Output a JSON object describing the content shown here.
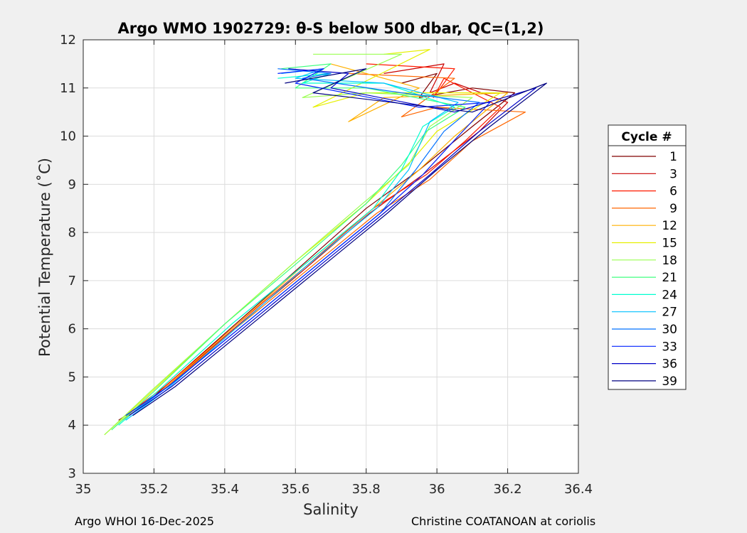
{
  "chart_data": {
    "type": "line",
    "title": "Argo WMO 1902729: θ-S below 500 dbar,  QC=(1,2)",
    "xlabel": "Salinity",
    "ylabel": "Potential Temperature (˚C)",
    "xlim": [
      35,
      36.4
    ],
    "ylim": [
      3,
      12
    ],
    "xticks": [
      "35",
      "35.2",
      "35.4",
      "35.6",
      "35.8",
      "36",
      "36.2",
      "36.4"
    ],
    "yticks": [
      "3",
      "4",
      "5",
      "6",
      "7",
      "8",
      "9",
      "10",
      "11",
      "12"
    ],
    "grid": true,
    "legend": {
      "title": "Cycle #",
      "placement": "outside-right",
      "entries": [
        {
          "label": "1",
          "color": "#800000"
        },
        {
          "label": "3",
          "color": "#c80000"
        },
        {
          "label": "6",
          "color": "#ff1a00"
        },
        {
          "label": "9",
          "color": "#ff6600"
        },
        {
          "label": "12",
          "color": "#ffb000"
        },
        {
          "label": "15",
          "color": "#e6f000"
        },
        {
          "label": "18",
          "color": "#9aff50"
        },
        {
          "label": "21",
          "color": "#40ff80"
        },
        {
          "label": "24",
          "color": "#00ffd0"
        },
        {
          "label": "27",
          "color": "#00c0ff"
        },
        {
          "label": "30",
          "color": "#0070ff"
        },
        {
          "label": "33",
          "color": "#0020ff"
        },
        {
          "label": "36",
          "color": "#0000c8"
        },
        {
          "label": "39",
          "color": "#000080"
        }
      ]
    },
    "series": [
      {
        "name": "1",
        "color": "#800000",
        "x": [
          35.1,
          35.2,
          35.4,
          35.6,
          35.8,
          35.95,
          36.1,
          36.22,
          36.1,
          35.95,
          36.0,
          35.9
        ],
        "y": [
          4.1,
          4.6,
          5.9,
          7.2,
          8.5,
          9.3,
          10.2,
          10.9,
          11.0,
          10.8,
          11.3,
          11.1
        ]
      },
      {
        "name": "3",
        "color": "#c80000",
        "x": [
          35.11,
          35.22,
          35.41,
          35.62,
          35.81,
          35.96,
          36.12,
          36.2,
          36.05,
          35.98,
          36.02,
          35.85
        ],
        "y": [
          4.1,
          4.7,
          5.9,
          7.2,
          8.4,
          9.2,
          10.1,
          10.7,
          11.1,
          10.9,
          11.5,
          11.3
        ]
      },
      {
        "name": "6",
        "color": "#ff1a00",
        "x": [
          35.12,
          35.23,
          35.42,
          35.63,
          35.82,
          35.97,
          36.08,
          36.18,
          36.02,
          35.99,
          36.05,
          35.8
        ],
        "y": [
          4.2,
          4.8,
          6.0,
          7.3,
          8.5,
          9.2,
          9.9,
          10.6,
          11.2,
          10.8,
          11.4,
          11.5
        ]
      },
      {
        "name": "9",
        "color": "#ff6600",
        "x": [
          35.12,
          35.24,
          35.43,
          35.63,
          35.83,
          35.98,
          36.1,
          36.25,
          36.0,
          35.9,
          36.05,
          35.75
        ],
        "y": [
          4.2,
          4.8,
          6.0,
          7.2,
          8.4,
          9.1,
          9.9,
          10.5,
          10.6,
          10.4,
          11.2,
          11.3
        ]
      },
      {
        "name": "12",
        "color": "#ffb000",
        "x": [
          35.11,
          35.22,
          35.42,
          35.62,
          35.82,
          35.95,
          36.05,
          36.2,
          35.85,
          35.75,
          35.95,
          35.7
        ],
        "y": [
          4.1,
          4.7,
          6.0,
          7.3,
          8.5,
          9.3,
          10.0,
          10.9,
          10.8,
          10.3,
          11.0,
          11.5
        ]
      },
      {
        "name": "15",
        "color": "#e6f000",
        "x": [
          35.06,
          35.18,
          35.4,
          35.6,
          35.8,
          35.93,
          36.0,
          36.18,
          35.8,
          35.65,
          35.98,
          35.85
        ],
        "y": [
          3.8,
          4.6,
          6.1,
          7.4,
          8.6,
          9.5,
          10.1,
          10.9,
          10.9,
          10.6,
          11.8,
          11.7
        ]
      },
      {
        "name": "18",
        "color": "#9aff50",
        "x": [
          35.06,
          35.19,
          35.4,
          35.6,
          35.79,
          35.92,
          35.98,
          36.1,
          35.8,
          35.62,
          35.9,
          35.65
        ],
        "y": [
          3.8,
          4.7,
          6.1,
          7.4,
          8.6,
          9.4,
          10.2,
          10.8,
          10.9,
          10.8,
          11.7,
          11.7
        ]
      },
      {
        "name": "21",
        "color": "#40ff80",
        "x": [
          35.08,
          35.2,
          35.4,
          35.61,
          35.8,
          35.9,
          35.97,
          36.08,
          35.8,
          35.6,
          35.7,
          35.56
        ],
        "y": [
          3.9,
          4.7,
          6.1,
          7.4,
          8.6,
          9.4,
          10.1,
          10.6,
          11.0,
          11.0,
          11.5,
          11.4
        ]
      },
      {
        "name": "24",
        "color": "#00ffd0",
        "x": [
          35.1,
          35.21,
          35.42,
          35.62,
          35.82,
          35.9,
          35.96,
          36.05,
          35.85,
          35.62,
          35.7,
          35.55
        ],
        "y": [
          4.0,
          4.7,
          6.1,
          7.3,
          8.5,
          9.3,
          10.2,
          10.6,
          11.1,
          11.1,
          11.3,
          11.2
        ]
      },
      {
        "name": "27",
        "color": "#00c0ff",
        "x": [
          35.12,
          35.23,
          35.43,
          35.63,
          35.83,
          35.92,
          35.98,
          36.06,
          35.85,
          35.6,
          35.68,
          35.56
        ],
        "y": [
          4.1,
          4.7,
          6.0,
          7.3,
          8.5,
          9.3,
          10.3,
          10.7,
          11.1,
          11.2,
          11.4,
          11.3
        ]
      },
      {
        "name": "30",
        "color": "#0070ff",
        "x": [
          35.13,
          35.24,
          35.44,
          35.64,
          35.84,
          35.94,
          36.02,
          36.12,
          35.9,
          35.62,
          35.7,
          35.55
        ],
        "y": [
          4.2,
          4.8,
          6.0,
          7.2,
          8.4,
          9.3,
          10.1,
          10.7,
          10.9,
          11.2,
          11.3,
          11.4
        ]
      },
      {
        "name": "33",
        "color": "#0020ff",
        "x": [
          35.12,
          35.24,
          35.44,
          35.64,
          35.84,
          35.96,
          36.06,
          36.15,
          35.95,
          35.6,
          35.68,
          35.55
        ],
        "y": [
          4.2,
          4.8,
          6.0,
          7.2,
          8.4,
          9.2,
          10.0,
          10.7,
          10.6,
          11.1,
          11.4,
          11.3
        ]
      },
      {
        "name": "36",
        "color": "#0000c8",
        "x": [
          35.13,
          35.25,
          35.45,
          35.65,
          35.85,
          35.98,
          36.12,
          36.28,
          36.05,
          35.7,
          35.75,
          35.58
        ],
        "y": [
          4.2,
          4.8,
          6.0,
          7.2,
          8.4,
          9.2,
          10.1,
          11.0,
          10.5,
          11.0,
          11.3,
          11.4
        ]
      },
      {
        "name": "39",
        "color": "#000080",
        "x": [
          35.14,
          35.26,
          35.46,
          35.66,
          35.86,
          36.0,
          36.15,
          36.31,
          36.1,
          35.65,
          35.8,
          35.57
        ],
        "y": [
          4.2,
          4.8,
          6.0,
          7.2,
          8.4,
          9.3,
          10.2,
          11.1,
          10.5,
          10.9,
          11.4,
          11.1
        ]
      }
    ]
  },
  "footer": {
    "left": "Argo WHOI 16-Dec-2025",
    "right": "Christine COATANOAN at coriolis"
  }
}
